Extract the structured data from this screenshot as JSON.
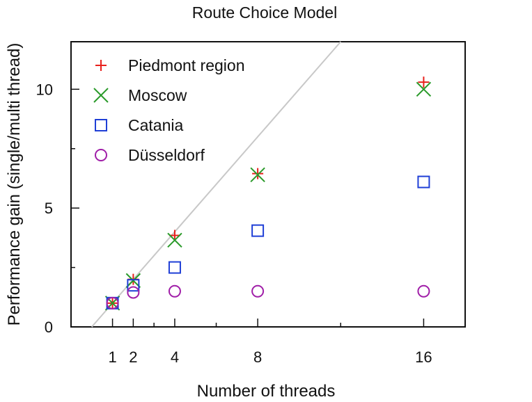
{
  "chart_data": {
    "type": "scatter",
    "title": "Route Choice Model",
    "xlabel": "Number of threads",
    "ylabel": "Performance gain (single/multi thread)",
    "xlim": [
      -1,
      18
    ],
    "ylim": [
      0,
      12
    ],
    "x_ticks": [
      1,
      2,
      4,
      8,
      16
    ],
    "x_minor_ticks": [
      3,
      6,
      12
    ],
    "y_ticks": [
      0,
      5,
      10
    ],
    "y_minor_ticks": [
      2.5,
      7.5
    ],
    "reference_line": {
      "slope": 1,
      "intercept": 0,
      "color": "#c8c8c8"
    },
    "grid": false,
    "legend_position": "top-left",
    "series": [
      {
        "name": "Piedmont region",
        "marker": "plus",
        "color": "#e8201c",
        "x": [
          1,
          2,
          4,
          8,
          16
        ],
        "y": [
          1.0,
          2.0,
          3.85,
          6.45,
          10.3
        ]
      },
      {
        "name": "Moscow",
        "marker": "x",
        "color": "#2a9a2a",
        "x": [
          1,
          2,
          4,
          8,
          16
        ],
        "y": [
          1.0,
          1.95,
          3.65,
          6.4,
          10.0
        ]
      },
      {
        "name": "Catania",
        "marker": "square",
        "color": "#1f3fd6",
        "x": [
          1,
          2,
          4,
          8,
          16
        ],
        "y": [
          1.0,
          1.75,
          2.5,
          4.05,
          6.1
        ]
      },
      {
        "name": "Düsseldorf",
        "marker": "circle",
        "color": "#a01ea8",
        "x": [
          1,
          2,
          4,
          8,
          16
        ],
        "y": [
          1.0,
          1.45,
          1.5,
          1.5,
          1.5
        ]
      }
    ]
  }
}
